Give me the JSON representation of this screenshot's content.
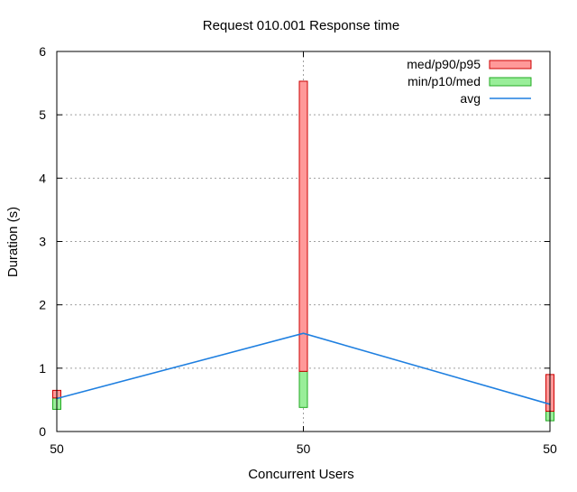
{
  "chart_data": {
    "type": "boxplot",
    "title": "Request 010.001 Response time",
    "xlabel": "Concurrent Users",
    "ylabel": "Duration (s)",
    "ylim": [
      0,
      6
    ],
    "yticks": [
      "0",
      "1",
      "2",
      "3",
      "4",
      "5",
      "6"
    ],
    "categories": [
      "50",
      "50",
      "50"
    ],
    "grid": true,
    "legend_position": "top-right",
    "series": [
      {
        "name": "med/p90/p95",
        "color": "#ff9999",
        "stroke": "#cc0000",
        "lower": [
          0.53,
          0.95,
          0.32
        ],
        "upper": [
          0.65,
          5.53,
          0.9
        ]
      },
      {
        "name": "min/p10/med",
        "color": "#99ee99",
        "stroke": "#22aa22",
        "lower": [
          0.35,
          0.38,
          0.17
        ],
        "upper": [
          0.53,
          0.95,
          0.32
        ]
      },
      {
        "name": "avg",
        "color": "#1e7fe0",
        "values": [
          0.52,
          1.55,
          0.43
        ]
      }
    ]
  }
}
